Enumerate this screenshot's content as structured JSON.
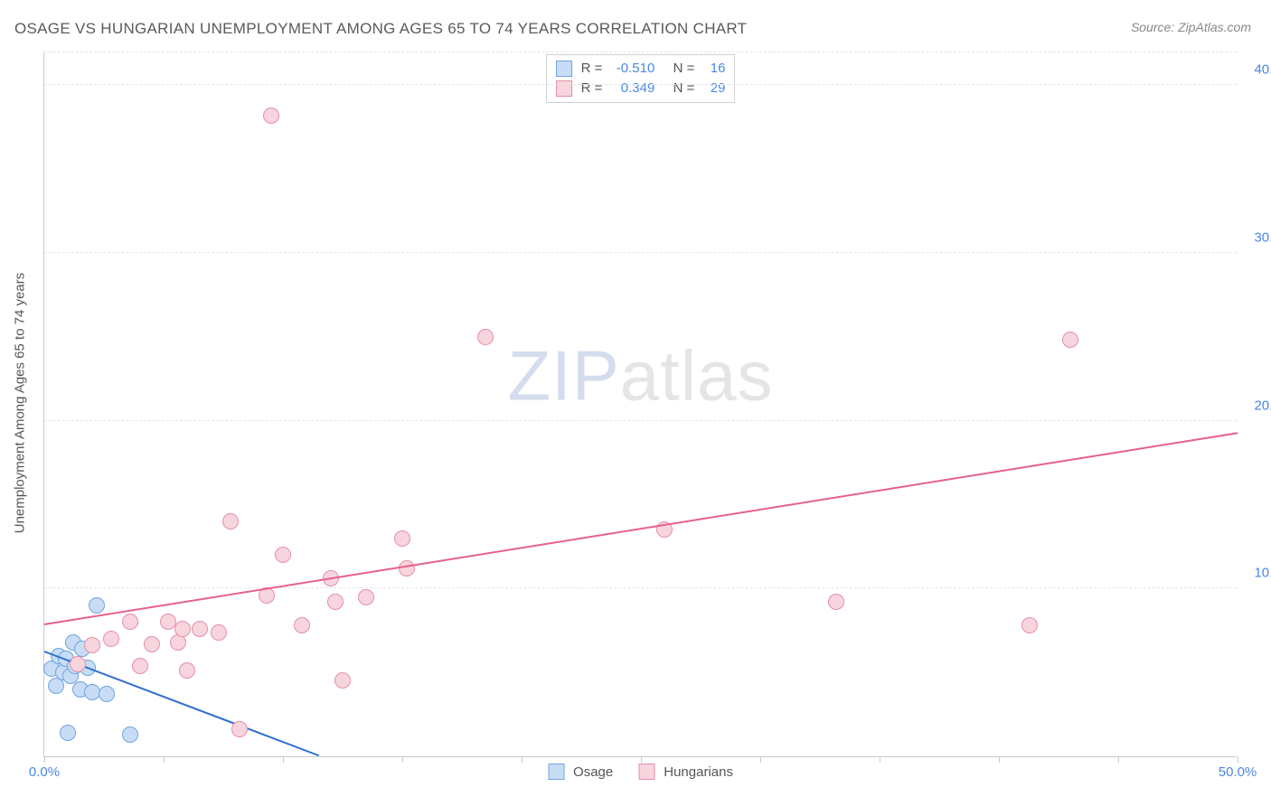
{
  "chart": {
    "type": "scatter",
    "title": "OSAGE VS HUNGARIAN UNEMPLOYMENT AMONG AGES 65 TO 74 YEARS CORRELATION CHART",
    "source_label": "Source: ZipAtlas.com",
    "y_axis_label": "Unemployment Among Ages 65 to 74 years",
    "watermark_prefix": "ZIP",
    "watermark_suffix": "atlas",
    "background_color": "#ffffff",
    "grid_color": "#e4e4e4",
    "axis_color": "#c9c9c9",
    "tick_label_color": "#4a86e8",
    "xlim": [
      0,
      50
    ],
    "ylim": [
      0,
      42
    ],
    "x_ticks": [
      0,
      5,
      10,
      15,
      20,
      25,
      30,
      35,
      40,
      45,
      50
    ],
    "x_tick_labels": {
      "0": "0.0%",
      "50": "50.0%"
    },
    "y_gridlines": [
      10,
      20,
      30,
      40
    ],
    "y_tick_labels": {
      "10": "10.0%",
      "20": "20.0%",
      "30": "30.0%",
      "40": "40.0%"
    },
    "series": [
      {
        "name": "Osage",
        "marker_fill": "#c8ddf5",
        "marker_stroke": "#6fa3e0",
        "marker_radius": 9,
        "line_color": "#2f6fd0",
        "R": "-0.510",
        "N": "16",
        "trend": {
          "x1": 0,
          "y1": 6.2,
          "x2": 11.5,
          "y2": 0
        },
        "points": [
          [
            0.3,
            5.2
          ],
          [
            0.6,
            6.0
          ],
          [
            0.8,
            5.0
          ],
          [
            0.9,
            5.8
          ],
          [
            1.1,
            4.8
          ],
          [
            1.2,
            6.8
          ],
          [
            1.3,
            5.4
          ],
          [
            1.5,
            4.0
          ],
          [
            1.6,
            6.4
          ],
          [
            1.8,
            5.3
          ],
          [
            2.0,
            3.8
          ],
          [
            2.2,
            9.0
          ],
          [
            2.6,
            3.7
          ],
          [
            1.0,
            1.4
          ],
          [
            3.6,
            1.3
          ],
          [
            0.5,
            4.2
          ]
        ]
      },
      {
        "name": "Hungarians",
        "marker_fill": "#f7d5de",
        "marker_stroke": "#e58fa6",
        "marker_radius": 9,
        "line_color": "#e75f8c",
        "R": "0.349",
        "N": "29",
        "trend": {
          "x1": 0,
          "y1": 7.8,
          "x2": 50,
          "y2": 19.2
        },
        "points": [
          [
            1.4,
            5.5
          ],
          [
            2.0,
            6.6
          ],
          [
            2.8,
            7.0
          ],
          [
            3.6,
            8.0
          ],
          [
            4.0,
            5.4
          ],
          [
            4.5,
            6.7
          ],
          [
            5.2,
            8.0
          ],
          [
            5.6,
            6.8
          ],
          [
            5.8,
            7.6
          ],
          [
            6.0,
            5.1
          ],
          [
            6.5,
            7.6
          ],
          [
            7.3,
            7.4
          ],
          [
            7.8,
            14.0
          ],
          [
            8.2,
            1.6
          ],
          [
            9.3,
            9.6
          ],
          [
            9.5,
            38.2
          ],
          [
            10.0,
            12.0
          ],
          [
            10.8,
            7.8
          ],
          [
            12.0,
            10.6
          ],
          [
            12.2,
            9.2
          ],
          [
            12.5,
            4.5
          ],
          [
            13.5,
            9.5
          ],
          [
            15.0,
            13.0
          ],
          [
            15.2,
            11.2
          ],
          [
            18.5,
            25.0
          ],
          [
            26.0,
            13.5
          ],
          [
            33.2,
            9.2
          ],
          [
            41.3,
            7.8
          ],
          [
            43.0,
            24.8
          ]
        ]
      }
    ],
    "legend": {
      "items": [
        {
          "label": "Osage",
          "fill": "#c8ddf5",
          "stroke": "#6fa3e0"
        },
        {
          "label": "Hungarians",
          "fill": "#f7d5de",
          "stroke": "#e58fa6"
        }
      ]
    }
  }
}
